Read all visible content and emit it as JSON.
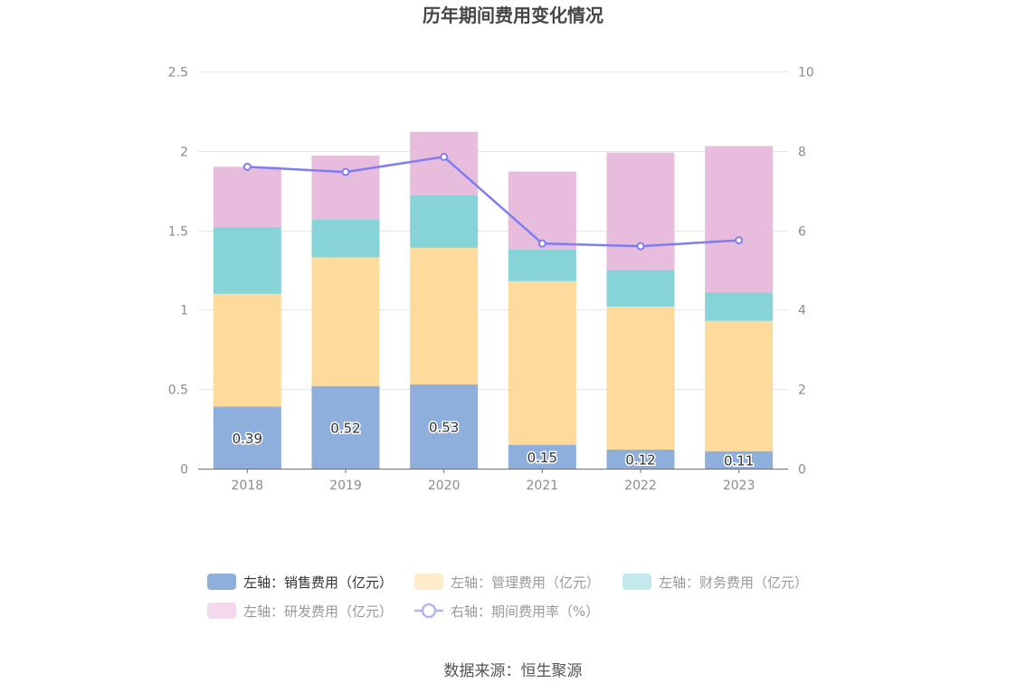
{
  "chart_data": {
    "type": "bar",
    "stacked": true,
    "title": "历年期间费用变化情况",
    "categories": [
      "2018",
      "2019",
      "2020",
      "2021",
      "2022",
      "2023"
    ],
    "y_left": {
      "min": 0,
      "max": 2.5,
      "ticks": [
        "0",
        "0.5",
        "1",
        "1.5",
        "2",
        "2.5"
      ]
    },
    "y_right": {
      "min": 0,
      "max": 10,
      "ticks": [
        "0",
        "2",
        "4",
        "6",
        "8",
        "10"
      ]
    },
    "grid": true,
    "legend_position": "bottom",
    "series": [
      {
        "name": "左轴：销售费用（亿元）",
        "type": "bar",
        "axis": "left",
        "color": "#8eaedb",
        "values": [
          0.39,
          0.52,
          0.53,
          0.15,
          0.12,
          0.11
        ],
        "labels": [
          "0.39",
          "0.52",
          "0.53",
          "0.15",
          "0.12",
          "0.11"
        ]
      },
      {
        "name": "左轴：管理费用（亿元）",
        "type": "bar",
        "axis": "left",
        "color": "#fedb9c",
        "values": [
          0.71,
          0.81,
          0.86,
          1.03,
          0.9,
          0.82
        ]
      },
      {
        "name": "左轴：财务费用（亿元）",
        "type": "bar",
        "axis": "left",
        "color": "#87d4d8",
        "values": [
          0.42,
          0.24,
          0.33,
          0.2,
          0.23,
          0.18
        ]
      },
      {
        "name": "左轴：研发费用（亿元）",
        "type": "bar",
        "axis": "left",
        "color": "#e8bcdc",
        "values": [
          0.38,
          0.4,
          0.4,
          0.49,
          0.74,
          0.92
        ]
      },
      {
        "name": "右轴：期间费用率（%）",
        "type": "line",
        "axis": "right",
        "color": "#7f7ef0",
        "values": [
          7.6,
          7.47,
          7.85,
          5.67,
          5.6,
          5.75
        ]
      }
    ],
    "legend_colors": [
      "#8eaedb",
      "#fdebc9",
      "#c3e9ec",
      "#f4d9ec",
      "#b3b3f5"
    ],
    "legend_text_colors": [
      "#333333",
      "#999999",
      "#999999",
      "#999999",
      "#999999"
    ]
  },
  "source": "数据来源：恒生聚源"
}
